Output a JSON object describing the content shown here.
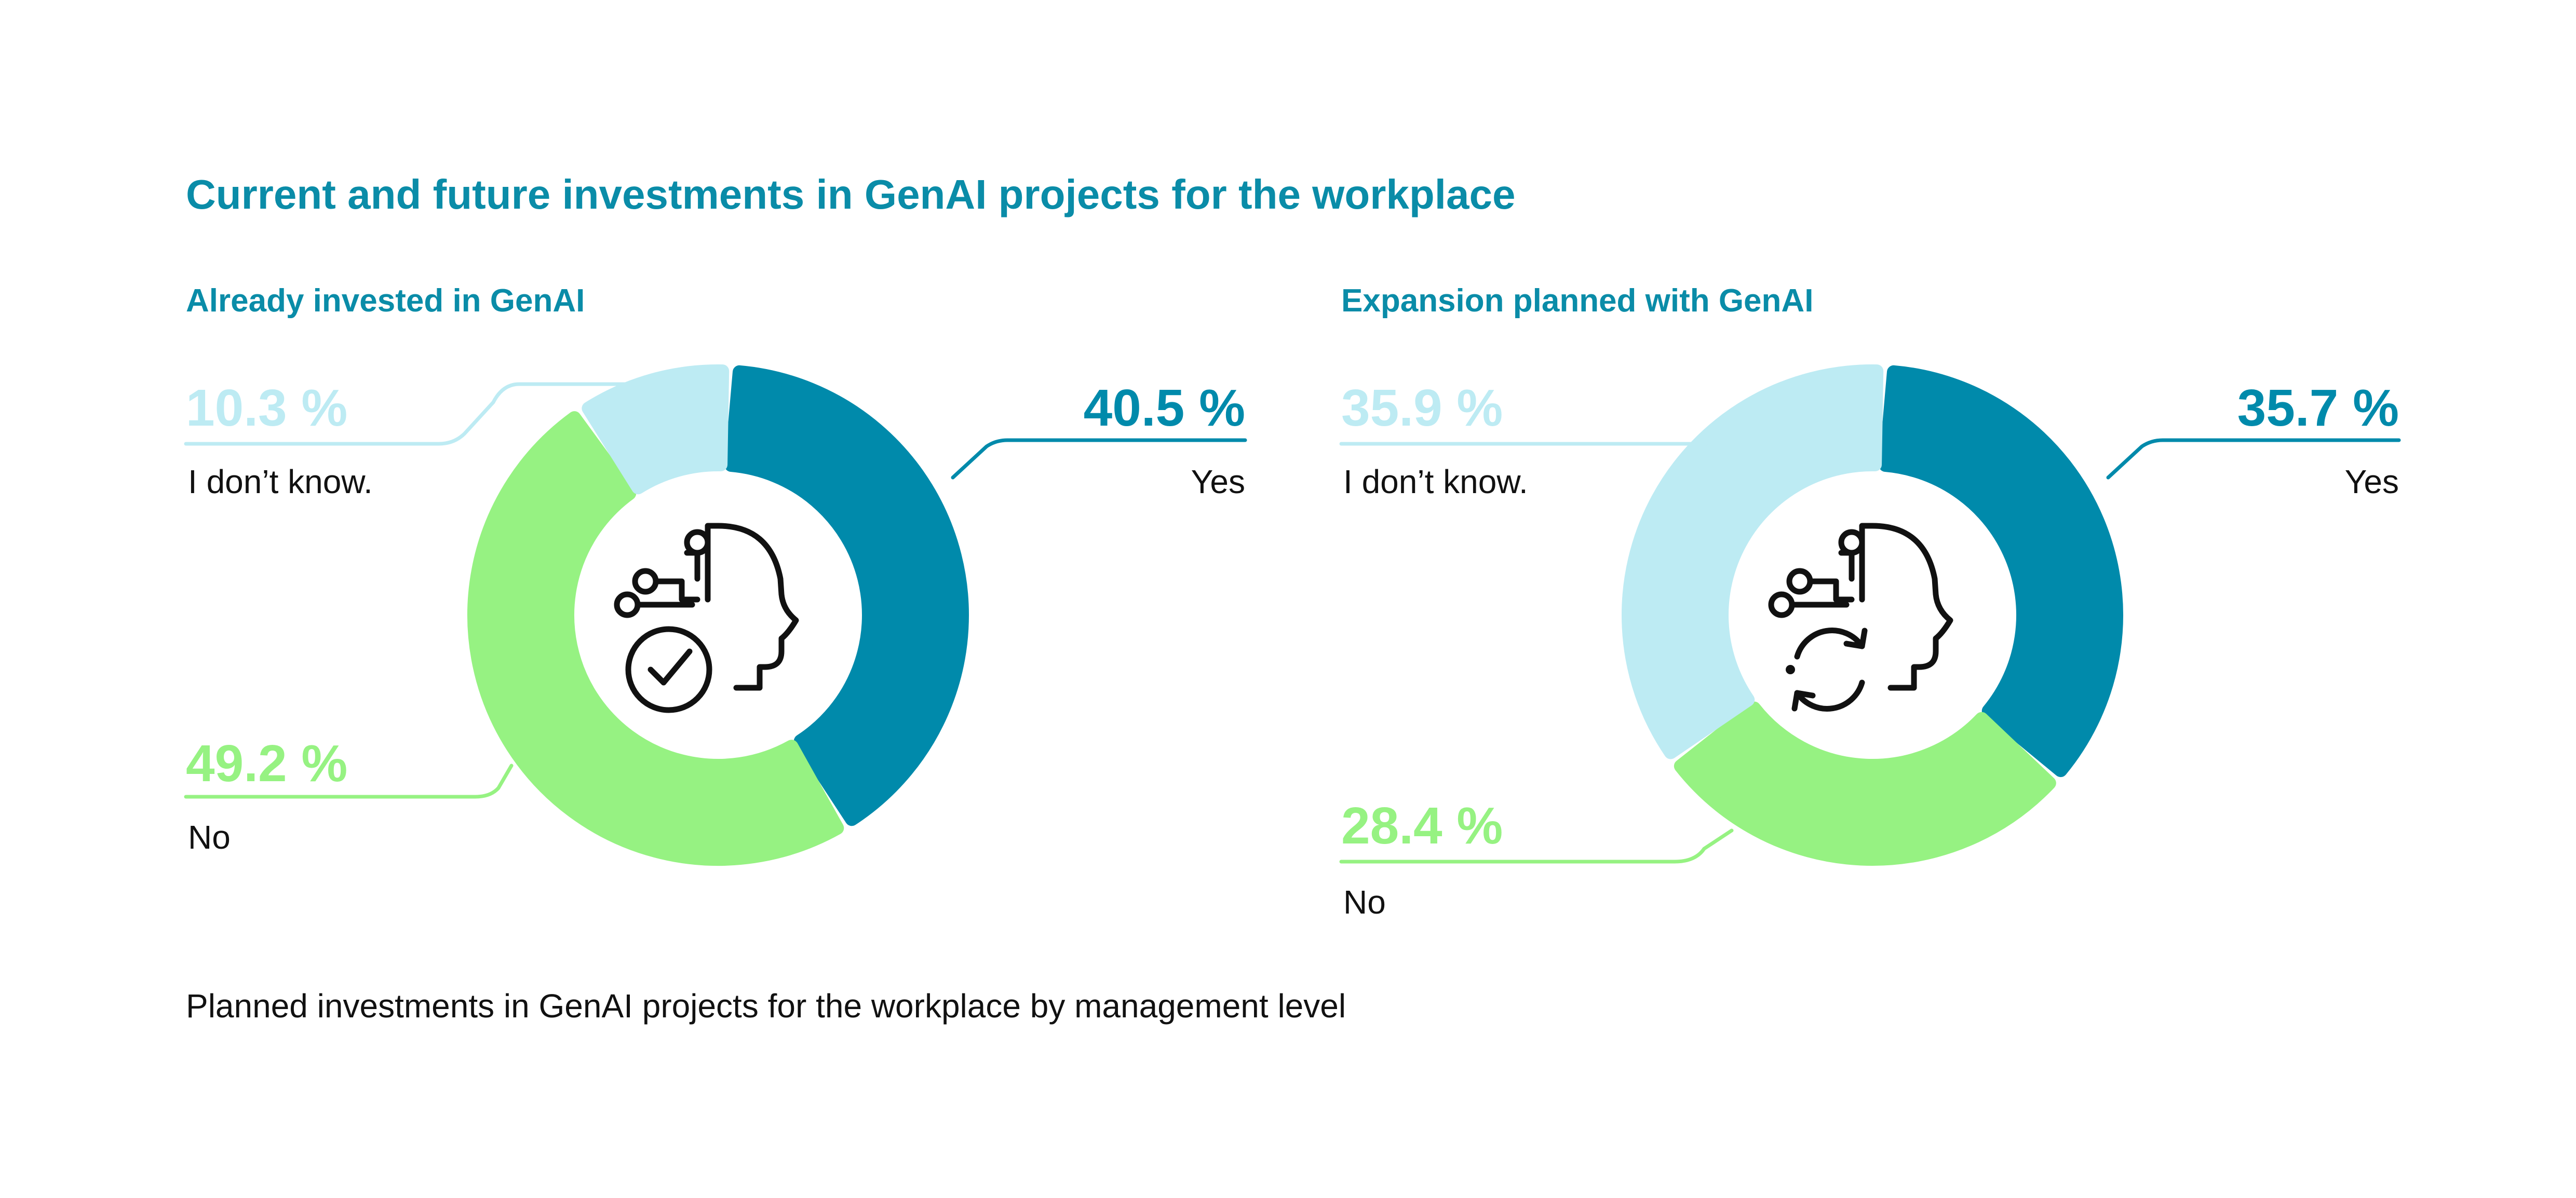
{
  "title": "Current and future investments in GenAI projects for the workplace",
  "footnote": "Planned investments in GenAI projects for the workplace by management level",
  "colors": {
    "title": "#0a8ca8",
    "yes": "#008aab",
    "no": "#96f282",
    "dont_know": "#bdebf3",
    "text": "#111111"
  },
  "icons": [
    "ai-head-check-icon",
    "ai-head-refresh-icon"
  ],
  "chart_data": [
    {
      "type": "pie",
      "donut": true,
      "title": "Already invested in GenAI",
      "slices": [
        {
          "label": "Yes",
          "value": 40.5,
          "value_label": "40.5 %",
          "color": "#008aab"
        },
        {
          "label": "No",
          "value": 49.2,
          "value_label": "49.2 %",
          "color": "#96f282"
        },
        {
          "label": "I don’t know.",
          "value": 10.3,
          "value_label": "10.3 %",
          "color": "#bdebf3"
        }
      ]
    },
    {
      "type": "pie",
      "donut": true,
      "title": "Expansion planned with GenAI",
      "slices": [
        {
          "label": "Yes",
          "value": 35.7,
          "value_label": "35.7 %",
          "color": "#008aab"
        },
        {
          "label": "No",
          "value": 28.4,
          "value_label": "28.4 %",
          "color": "#96f282"
        },
        {
          "label": "I don’t know.",
          "value": 35.9,
          "value_label": "35.9 %",
          "color": "#bdebf3"
        }
      ]
    }
  ]
}
